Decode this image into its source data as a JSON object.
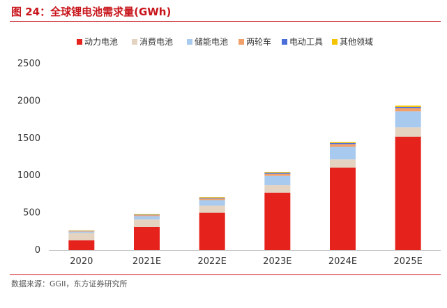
{
  "header": {
    "title": "图 24：全球锂电池需求量(GWh)"
  },
  "footer": {
    "source": "数据来源：GGII，东方证券研究所"
  },
  "chart_data": {
    "type": "bar",
    "stacked": true,
    "title": "图 24：全球锂电池需求量(GWh)",
    "categories": [
      "2020",
      "2021E",
      "2022E",
      "2023E",
      "2024E",
      "2025E"
    ],
    "ylim": [
      0,
      2500
    ],
    "yticks": [
      0,
      500,
      1000,
      1500,
      2000,
      2500
    ],
    "grid": false,
    "legend_position": "top",
    "series": [
      {
        "name": "动力电池",
        "color": "#e5231c",
        "values": [
          130,
          310,
          500,
          770,
          1105,
          1520
        ]
      },
      {
        "name": "消费电池",
        "color": "#e3d3c0",
        "values": [
          100,
          100,
          95,
          100,
          110,
          125
        ]
      },
      {
        "name": "储能电池",
        "color": "#a9caef",
        "values": [
          18,
          45,
          75,
          125,
          170,
          215
        ]
      },
      {
        "name": "两轮车",
        "color": "#f1a06a",
        "values": [
          8,
          12,
          20,
          28,
          35,
          42
        ]
      },
      {
        "name": "电动工具",
        "color": "#4a6fd9",
        "values": [
          3,
          6,
          10,
          12,
          15,
          18
        ]
      },
      {
        "name": "其他领域",
        "color": "#f5c400",
        "values": [
          5,
          8,
          10,
          12,
          14,
          16
        ]
      }
    ]
  }
}
